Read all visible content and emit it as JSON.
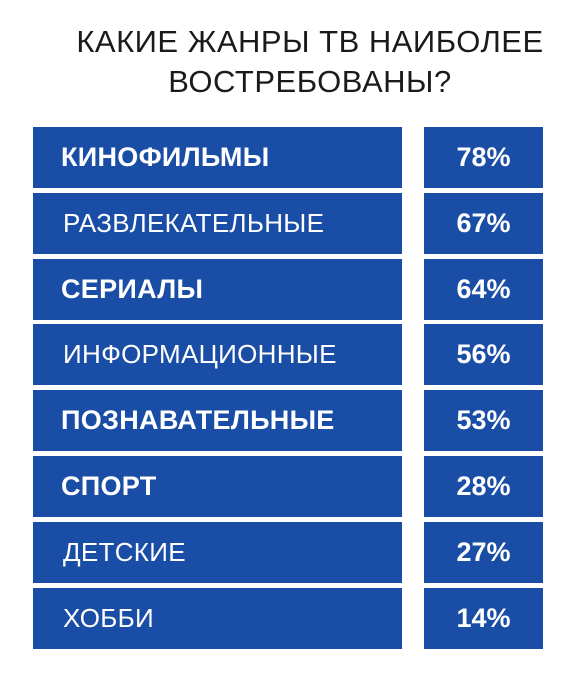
{
  "chart_data": {
    "type": "table",
    "title_lines": [
      "КАКИЕ ЖАНРЫ ТВ НАИБОЛЕЕ",
      "ВОСТРЕБОВАНЫ?"
    ],
    "rows": [
      {
        "label": "КИНОФИЛЬМЫ",
        "value": 78,
        "value_text": "78%",
        "emphasis": "bold"
      },
      {
        "label": "РАЗВЛЕКАТЕЛЬНЫЕ",
        "value": 67,
        "value_text": "67%",
        "emphasis": "light"
      },
      {
        "label": "СЕРИАЛЫ",
        "value": 64,
        "value_text": "64%",
        "emphasis": "bold"
      },
      {
        "label": "ИНФОРМАЦИОННЫЕ",
        "value": 56,
        "value_text": "56%",
        "emphasis": "light"
      },
      {
        "label": "ПОЗНАВАТЕЛЬНЫЕ",
        "value": 53,
        "value_text": "53%",
        "emphasis": "bold"
      },
      {
        "label": "СПОРТ",
        "value": 28,
        "value_text": "28%",
        "emphasis": "bold"
      },
      {
        "label": "ДЕТСКИЕ",
        "value": 27,
        "value_text": "27%",
        "emphasis": "light"
      },
      {
        "label": "ХОББИ",
        "value": 14,
        "value_text": "14%",
        "emphasis": "light"
      }
    ],
    "colors": {
      "cell_background": "#1a4ea6",
      "cell_text": "#ffffff",
      "title_text": "#1a1a1a"
    }
  }
}
